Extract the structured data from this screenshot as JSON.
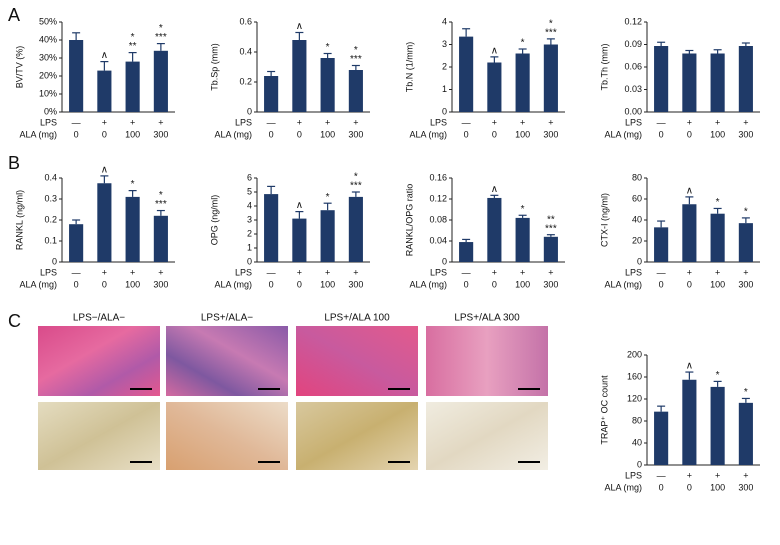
{
  "panel_letters": [
    "A",
    "B",
    "C"
  ],
  "histology_labels": [
    "LPS−/ALA−",
    "LPS+/ALA−",
    "LPS+/ALA 100",
    "LPS+/ALA 300"
  ],
  "chart_data": [
    {
      "type": "bar",
      "y_label": "BV/TV (%)",
      "color": "#1f3a68",
      "ylim": [
        0,
        50
      ],
      "yticks": [
        {
          "value": 0,
          "label": "0%"
        },
        {
          "value": 10,
          "label": "10%"
        },
        {
          "value": 20,
          "label": "20%"
        },
        {
          "value": 30,
          "label": "30%"
        },
        {
          "value": 40,
          "label": "40%"
        },
        {
          "value": 50,
          "label": "50%"
        }
      ],
      "values": [
        40,
        23,
        28,
        34
      ],
      "errors": [
        4,
        5,
        5,
        4
      ],
      "annotations": [
        [],
        [
          "∧"
        ],
        [
          "*",
          "**"
        ],
        [
          "*",
          "***"
        ]
      ],
      "x_label_rows": [
        {
          "label": "LPS",
          "values": [
            "—",
            "+",
            "+",
            "+"
          ]
        },
        {
          "label": "ALA (mg)",
          "values": [
            "0",
            "0",
            "100",
            "300"
          ]
        }
      ]
    },
    {
      "type": "bar",
      "y_label": "Tb.Sp (mm)",
      "color": "#1f3a68",
      "ylim": [
        0,
        0.6
      ],
      "yticks": [
        0,
        0.2,
        0.4,
        0.6
      ],
      "values": [
        0.24,
        0.48,
        0.36,
        0.28
      ],
      "errors": [
        0.03,
        0.05,
        0.03,
        0.03
      ],
      "annotations": [
        [],
        [
          "∧"
        ],
        [
          "*"
        ],
        [
          "*",
          "***"
        ]
      ],
      "x_label_rows": [
        {
          "label": "LPS",
          "values": [
            "—",
            "+",
            "+",
            "+"
          ]
        },
        {
          "label": "ALA (mg)",
          "values": [
            "0",
            "0",
            "100",
            "300"
          ]
        }
      ]
    },
    {
      "type": "bar",
      "y_label": "Tb.N (1/mm)",
      "color": "#1f3a68",
      "ylim": [
        0,
        4
      ],
      "yticks": [
        0,
        1,
        2,
        3,
        4
      ],
      "values": [
        3.35,
        2.2,
        2.6,
        3.0
      ],
      "errors": [
        0.35,
        0.25,
        0.2,
        0.25
      ],
      "annotations": [
        [],
        [
          "∧"
        ],
        [
          "*"
        ],
        [
          "*",
          "***"
        ]
      ],
      "x_label_rows": [
        {
          "label": "LPS",
          "values": [
            "—",
            "+",
            "+",
            "+"
          ]
        },
        {
          "label": "ALA (mg)",
          "values": [
            "0",
            "0",
            "100",
            "300"
          ]
        }
      ]
    },
    {
      "type": "bar",
      "y_label": "Tb.Th (mm)",
      "color": "#1f3a68",
      "ylim": [
        0,
        0.12
      ],
      "yticks": [
        {
          "value": 0,
          "label": "0.00"
        },
        0.03,
        0.06,
        0.09,
        {
          "value": 0.12,
          "label": "0.12"
        }
      ],
      "values": [
        0.088,
        0.078,
        0.078,
        0.088
      ],
      "errors": [
        0.005,
        0.004,
        0.005,
        0.004
      ],
      "annotations": [
        [],
        [],
        [],
        []
      ],
      "x_label_rows": [
        {
          "label": "LPS",
          "values": [
            "—",
            "+",
            "+",
            "+"
          ]
        },
        {
          "label": "ALA (mg)",
          "values": [
            "0",
            "0",
            "100",
            "300"
          ]
        }
      ]
    },
    {
      "type": "bar",
      "y_label": "RANKL (ng/ml)",
      "color": "#1f3a68",
      "ylim": [
        0,
        0.4
      ],
      "yticks": [
        0,
        0.1,
        0.2,
        0.3,
        0.4
      ],
      "values": [
        0.18,
        0.375,
        0.31,
        0.22
      ],
      "errors": [
        0.02,
        0.035,
        0.03,
        0.025
      ],
      "annotations": [
        [],
        [
          "∧"
        ],
        [
          "*"
        ],
        [
          "*",
          "***"
        ]
      ],
      "x_label_rows": [
        {
          "label": "LPS",
          "values": [
            "—",
            "+",
            "+",
            "+"
          ]
        },
        {
          "label": "ALA (mg)",
          "values": [
            "0",
            "0",
            "100",
            "300"
          ]
        }
      ]
    },
    {
      "type": "bar",
      "y_label": "OPG (ng/ml)",
      "color": "#1f3a68",
      "ylim": [
        0,
        6
      ],
      "yticks": [
        0,
        1,
        2,
        3,
        4,
        5,
        6
      ],
      "values": [
        4.85,
        3.1,
        3.7,
        4.65
      ],
      "errors": [
        0.55,
        0.5,
        0.5,
        0.35
      ],
      "annotations": [
        [],
        [
          "∧"
        ],
        [
          "*"
        ],
        [
          "*",
          "***"
        ]
      ],
      "x_label_rows": [
        {
          "label": "LPS",
          "values": [
            "—",
            "+",
            "+",
            "+"
          ]
        },
        {
          "label": "ALA (mg)",
          "values": [
            "0",
            "0",
            "100",
            "300"
          ]
        }
      ]
    },
    {
      "type": "bar",
      "y_label": "RANKL/OPG ratio",
      "color": "#1f3a68",
      "ylim": [
        0,
        0.16
      ],
      "yticks": [
        0,
        0.04,
        0.08,
        0.12,
        0.16
      ],
      "values": [
        0.038,
        0.122,
        0.084,
        0.048
      ],
      "errors": [
        0.005,
        0.005,
        0.005,
        0.004
      ],
      "annotations": [
        [],
        [
          "∧"
        ],
        [
          "*"
        ],
        [
          "**",
          "***"
        ]
      ],
      "x_label_rows": [
        {
          "label": "LPS",
          "values": [
            "—",
            "+",
            "+",
            "+"
          ]
        },
        {
          "label": "ALA (mg)",
          "values": [
            "0",
            "0",
            "100",
            "300"
          ]
        }
      ]
    },
    {
      "type": "bar",
      "y_label": "CTX-I (ng/ml)",
      "color": "#1f3a68",
      "ylim": [
        0,
        80
      ],
      "yticks": [
        0,
        20,
        40,
        60,
        80
      ],
      "values": [
        33,
        55,
        46,
        37
      ],
      "errors": [
        6,
        7,
        5,
        5
      ],
      "annotations": [
        [],
        [
          "∧"
        ],
        [
          "*"
        ],
        [
          "*"
        ]
      ],
      "x_label_rows": [
        {
          "label": "LPS",
          "values": [
            "—",
            "+",
            "+",
            "+"
          ]
        },
        {
          "label": "ALA (mg)",
          "values": [
            "0",
            "0",
            "100",
            "300"
          ]
        }
      ]
    },
    {
      "type": "bar",
      "y_label": "TRAP⁺ OC count",
      "color": "#1f3a68",
      "ylim": [
        0,
        200
      ],
      "yticks": [
        0,
        40,
        80,
        120,
        160,
        200
      ],
      "values": [
        97,
        155,
        142,
        113
      ],
      "errors": [
        10,
        14,
        10,
        8
      ],
      "annotations": [
        [],
        [
          "∧"
        ],
        [
          "*"
        ],
        [
          "*"
        ]
      ],
      "x_label_rows": [
        {
          "label": "LPS",
          "values": [
            "—",
            "+",
            "+",
            "+"
          ]
        },
        {
          "label": "ALA (mg)",
          "values": [
            "0",
            "0",
            "100",
            "300"
          ]
        }
      ]
    }
  ]
}
